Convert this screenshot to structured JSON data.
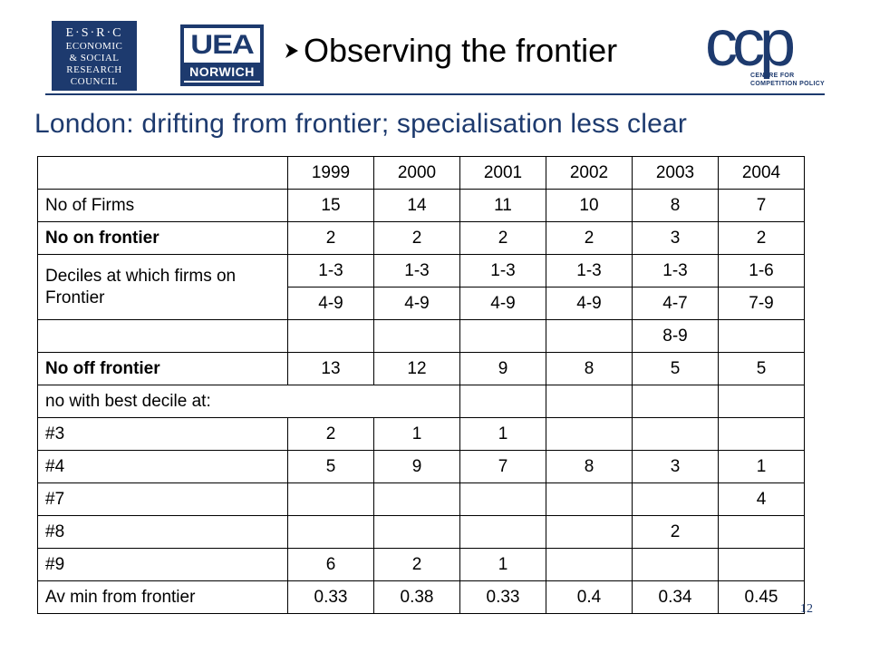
{
  "logos": {
    "esrc": {
      "line1": "E·S·R·C",
      "line2": "ECONOMIC",
      "line3": "& SOCIAL",
      "line4": "RESEARCH",
      "line5": "COUNCIL"
    },
    "uea": {
      "main": "UEA",
      "sub": "NORWICH"
    },
    "ccp": {
      "letters": "ccp",
      "caption1": "CENTRE FOR",
      "caption2": "COMPETITION POLICY"
    }
  },
  "title": "Observing the frontier",
  "subtitle": "London: drifting from frontier; specialisation less clear",
  "table": {
    "years": [
      "1999",
      "2000",
      "2001",
      "2002",
      "2003",
      "2004"
    ],
    "rows": {
      "firms": {
        "label": "No of Firms",
        "values": [
          "15",
          "14",
          "11",
          "10",
          "8",
          "7"
        ]
      },
      "on_frontier": {
        "label": "No on frontier",
        "values": [
          "2",
          "2",
          "2",
          "2",
          "3",
          "2"
        ]
      },
      "deciles": {
        "label": "Deciles at which firms on Frontier",
        "row1": [
          "1-3",
          "1-3",
          "1-3",
          "1-3",
          "1-3",
          "1-6"
        ],
        "row2": [
          "4-9",
          "4-9",
          "4-9",
          "4-9",
          "4-7",
          "7-9"
        ],
        "row3": [
          "",
          "",
          "",
          "",
          "8-9",
          ""
        ]
      },
      "off_frontier": {
        "label": "No off frontier",
        "values": [
          "13",
          "12",
          "9",
          "8",
          "5",
          "5"
        ]
      },
      "best_decile_header": {
        "label": "no with best decile at:"
      },
      "d3": {
        "label": "#3",
        "values": [
          "2",
          "1",
          "1",
          "",
          "",
          ""
        ]
      },
      "d4": {
        "label": "#4",
        "values": [
          "5",
          "9",
          "7",
          "8",
          "3",
          "1"
        ]
      },
      "d7": {
        "label": "#7",
        "values": [
          "",
          "",
          "",
          "",
          "",
          "4"
        ]
      },
      "d8": {
        "label": "#8",
        "values": [
          "",
          "",
          "",
          "",
          "2",
          ""
        ]
      },
      "d9": {
        "label": "#9",
        "values": [
          "6",
          "2",
          "1",
          "",
          "",
          ""
        ]
      },
      "av_min": {
        "label": "Av min from frontier",
        "values": [
          "0.33",
          "0.38",
          "0.33",
          "0.4",
          "0.34",
          "0.45"
        ]
      }
    }
  },
  "page_number": "12",
  "colors": {
    "brand_navy": "#1d3a6e",
    "text": "#000000"
  }
}
